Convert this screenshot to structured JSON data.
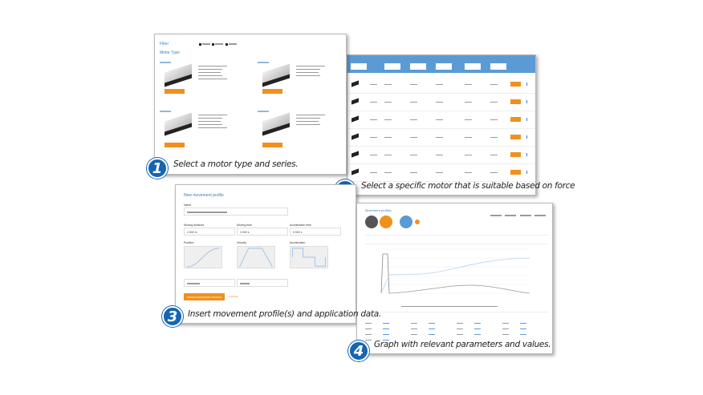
{
  "panel1": {
    "filter_label": "Filter",
    "motor_type_title": "Motor Type",
    "series_count": 4,
    "button_color": "#f0901e"
  },
  "panel2": {
    "row_count": 6,
    "header_color": "#5b9bd5"
  },
  "panel3": {
    "title": "New movement profile",
    "name_label": "Name",
    "moving_distance_label": "Moving distance",
    "moving_distance_value": "2.500 m",
    "moving_time_label": "Moving time",
    "moving_time_value": "2.900 s",
    "acceleration_time_label": "Acceleration time",
    "acceleration_time_value": "0.500 s",
    "position_label": "Position",
    "velocity_label": "Velocity",
    "acceleration_label": "Acceleration",
    "create_button": "CREATE MOVEMENT PROFILE",
    "cancel_button": "CANCEL"
  },
  "panel4": {
    "title": "Movement profiles"
  },
  "captions": [
    {
      "num": "1",
      "text": "Select a motor type and series."
    },
    {
      "num": "2",
      "text": "Select a specific motor that is suitable based on force"
    },
    {
      "num": "3",
      "text": "Insert movement profile(s) and application data."
    },
    {
      "num": "4",
      "text": "Graph with relevant parameters and values."
    }
  ],
  "colors": {
    "badge": "#1565b0",
    "accent": "#f0901e",
    "link": "#3a7fc4"
  }
}
